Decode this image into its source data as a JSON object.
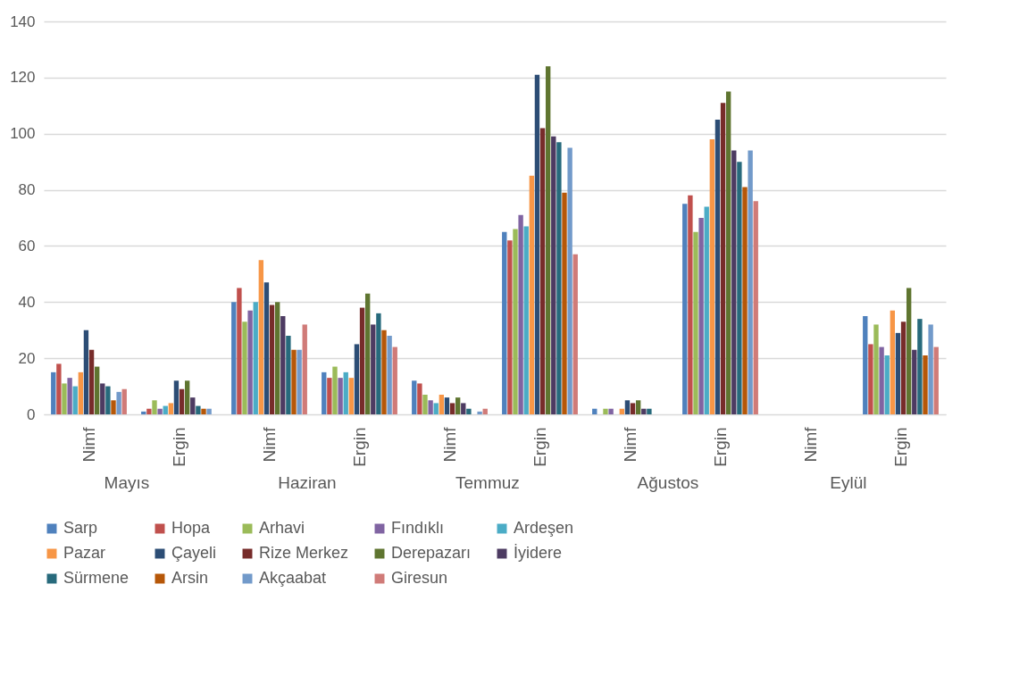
{
  "chart_data": {
    "type": "bar",
    "categories": [
      "Nimf",
      "Ergin",
      "Nimf",
      "Ergin",
      "Nimf",
      "Ergin",
      "Nimf",
      "Ergin",
      "Nimf",
      "Ergin"
    ],
    "annotations": [
      "Mayıs",
      "Haziran",
      "Temmuz",
      "Ağustos",
      "Eylül"
    ],
    "ylim": [
      0,
      140
    ],
    "yticks": [
      0,
      20,
      40,
      60,
      80,
      100,
      120,
      140
    ],
    "grid": "y",
    "legend": "bottom",
    "series": [
      {
        "name": "Sarp",
        "color": "#4f81bd",
        "values": [
          15,
          1,
          40,
          15,
          12,
          65,
          2,
          75,
          0,
          35
        ]
      },
      {
        "name": "Hopa",
        "color": "#c0504d",
        "values": [
          18,
          2,
          45,
          13,
          11,
          62,
          0,
          78,
          0,
          25
        ]
      },
      {
        "name": "Arhavi",
        "color": "#9bbb59",
        "values": [
          11,
          5,
          33,
          17,
          7,
          66,
          2,
          65,
          0,
          32
        ]
      },
      {
        "name": "Fındıklı",
        "color": "#8064a2",
        "values": [
          13,
          2,
          37,
          13,
          5,
          71,
          2,
          70,
          0,
          24
        ]
      },
      {
        "name": "Ardeşen",
        "color": "#4bacc6",
        "values": [
          10,
          3,
          40,
          15,
          4,
          67,
          0,
          74,
          0,
          21
        ]
      },
      {
        "name": "Pazar",
        "color": "#f79646",
        "values": [
          15,
          4,
          55,
          13,
          7,
          85,
          2,
          98,
          0,
          37
        ]
      },
      {
        "name": "Çayeli",
        "color": "#2c4d75",
        "values": [
          30,
          12,
          47,
          25,
          6,
          121,
          5,
          105,
          0,
          29
        ]
      },
      {
        "name": "Rize Merkez",
        "color": "#772c2a",
        "values": [
          23,
          9,
          39,
          38,
          4,
          102,
          4,
          111,
          0,
          33
        ]
      },
      {
        "name": "Derepazarı",
        "color": "#5f7530",
        "values": [
          17,
          12,
          40,
          43,
          6,
          124,
          5,
          115,
          0,
          45
        ]
      },
      {
        "name": "İyidere",
        "color": "#4d3b62",
        "values": [
          11,
          6,
          35,
          32,
          4,
          99,
          2,
          94,
          0,
          23
        ]
      },
      {
        "name": "Sürmene",
        "color": "#276a7c",
        "values": [
          10,
          3,
          28,
          36,
          2,
          97,
          2,
          90,
          0,
          34
        ]
      },
      {
        "name": "Arsin",
        "color": "#b65708",
        "values": [
          5,
          2,
          23,
          30,
          0,
          79,
          0,
          81,
          0,
          21
        ]
      },
      {
        "name": "Akçaabat",
        "color": "#729aca",
        "values": [
          8,
          2,
          23,
          28,
          1,
          95,
          0,
          94,
          0,
          32
        ]
      },
      {
        "name": "Giresun",
        "color": "#d07b78",
        "values": [
          9,
          0,
          32,
          24,
          2,
          57,
          0,
          76,
          0,
          24
        ]
      }
    ]
  }
}
